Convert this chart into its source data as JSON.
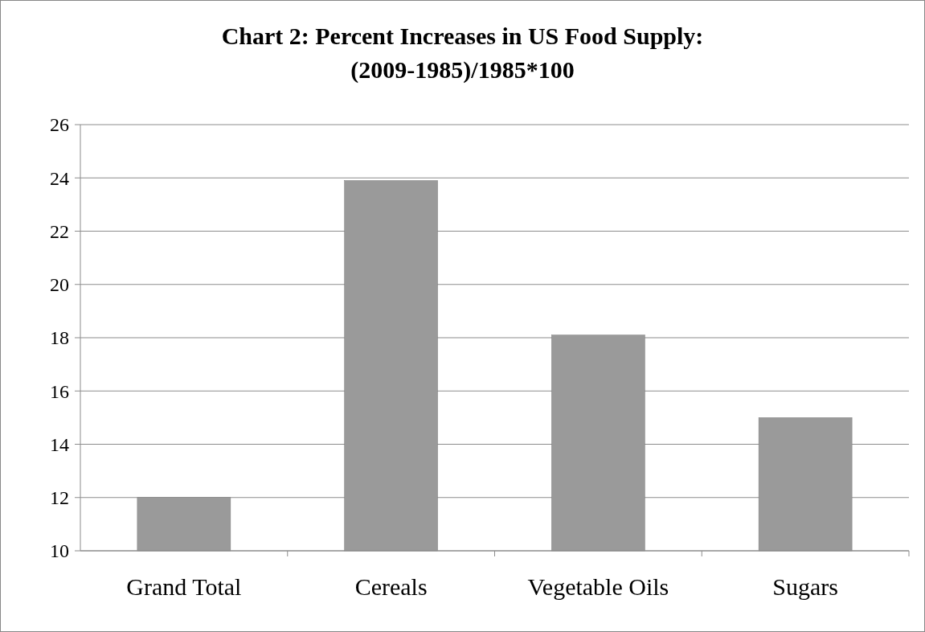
{
  "chart_data": {
    "type": "bar",
    "title": "Chart 2: Percent Increases in US Food Supply: (2009-1985)/1985*100",
    "categories": [
      "Grand Total",
      "Cereals",
      "Vegetable Oils",
      "Sugars"
    ],
    "values": [
      12,
      23.9,
      18.1,
      15
    ],
    "color": "#9a9a9a",
    "ylim": [
      10,
      26
    ],
    "yticks": [
      10,
      12,
      14,
      16,
      18,
      20,
      22,
      24,
      26
    ],
    "grid": "y"
  }
}
